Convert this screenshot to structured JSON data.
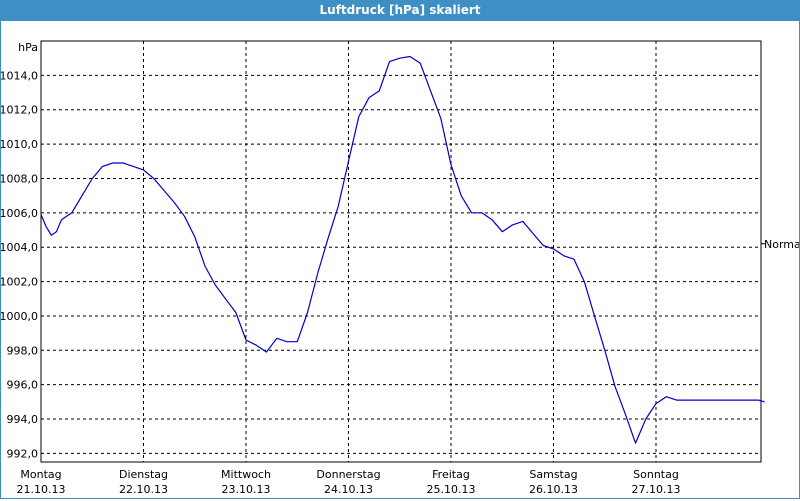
{
  "window": {
    "title": "Luftdruck [hPa] skaliert"
  },
  "chart_data": {
    "type": "line",
    "title": "Luftdruck [hPa] skaliert",
    "ylabel": "hPa",
    "xlabel": "",
    "ylim": [
      991.5,
      1016.0
    ],
    "xlim": [
      0,
      7.06
    ],
    "yticks": [
      "992,0",
      "994,0",
      "996,0",
      "998,0",
      "1000,0",
      "1002,0",
      "1004,0",
      "1006,0",
      "1008,0",
      "1010,0",
      "1012,0",
      "1014,0"
    ],
    "ytick_values": [
      992,
      994,
      996,
      998,
      1000,
      1002,
      1004,
      1006,
      1008,
      1010,
      1012,
      1014
    ],
    "xticks": [
      {
        "day": "Montag",
        "date": "21.10.13"
      },
      {
        "day": "Dienstag",
        "date": "22.10.13"
      },
      {
        "day": "Mittwoch",
        "date": "23.10.13"
      },
      {
        "day": "Donnerstag",
        "date": "24.10.13"
      },
      {
        "day": "Freitag",
        "date": "25.10.13"
      },
      {
        "day": "Samstag",
        "date": "26.10.13"
      },
      {
        "day": "Sonntag",
        "date": "27.10.13"
      }
    ],
    "reference_label": "Normal",
    "reference_value": 1004.2,
    "grid": true,
    "line_color": "#0000cc",
    "series": [
      {
        "x": [
          0.0,
          0.05,
          0.1,
          0.15,
          0.2,
          0.3,
          0.4,
          0.5,
          0.6,
          0.7,
          0.8,
          0.9,
          1.0,
          1.1,
          1.2,
          1.3,
          1.4,
          1.5,
          1.6,
          1.7,
          1.8,
          1.9,
          2.0,
          2.1,
          2.2,
          2.3,
          2.4,
          2.5,
          2.6,
          2.7,
          2.8,
          2.9,
          3.0,
          3.1,
          3.2,
          3.3,
          3.4,
          3.5,
          3.6,
          3.7,
          3.8,
          3.9,
          4.0,
          4.1,
          4.2,
          4.3,
          4.4,
          4.5,
          4.6,
          4.7,
          4.8,
          4.9,
          5.0,
          5.1,
          5.2,
          5.3,
          5.4,
          5.5,
          5.6,
          5.7,
          5.8,
          5.9,
          6.0,
          6.1,
          6.2,
          6.3,
          6.4,
          6.5,
          6.6,
          6.7,
          6.8,
          6.9,
          7.0,
          7.06
        ],
        "y": [
          1005.9,
          1005.2,
          1004.7,
          1004.9,
          1005.6,
          1006.0,
          1007.0,
          1008.0,
          1008.7,
          1008.9,
          1008.9,
          1008.7,
          1008.5,
          1008.0,
          1007.3,
          1006.6,
          1005.8,
          1004.6,
          1002.9,
          1001.8,
          1001.0,
          1000.2,
          998.6,
          998.3,
          997.9,
          998.7,
          998.5,
          998.5,
          1000.2,
          1002.5,
          1004.5,
          1006.4,
          1009.0,
          1011.6,
          1012.7,
          1013.1,
          1014.8,
          1015.0,
          1015.1,
          1014.7,
          1013.1,
          1011.5,
          1008.8,
          1007.0,
          1006.0,
          1006.0,
          1005.6,
          1004.9,
          1005.3,
          1005.5,
          1004.8,
          1004.1,
          1003.9,
          1003.5,
          1003.3,
          1002.0,
          1000.0,
          998.0,
          995.9,
          994.3,
          992.6,
          994.0,
          994.9,
          995.3,
          995.1,
          995.1,
          995.1,
          995.1,
          995.1,
          995.1,
          995.1,
          995.1,
          995.1,
          995.0
        ]
      }
    ]
  }
}
